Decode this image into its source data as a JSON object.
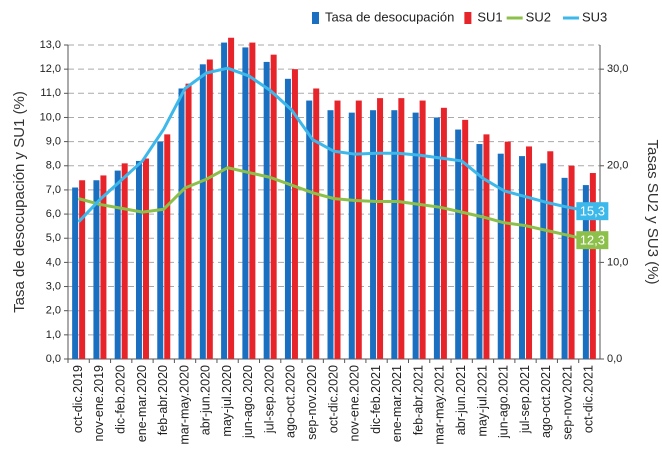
{
  "chart_data": {
    "type": "bar-line",
    "y_label": "Tasa de desocupación y SU1 (%)",
    "y2_label": "Tasas SU2 y SU3 (%)",
    "categories": [
      "oct-dic.2019",
      "nov-ene.2019",
      "dic-feb.2020",
      "ene-mar.2020",
      "feb-abr.2020",
      "mar-may.2020",
      "abr-jun.2020",
      "may-jul.2020",
      "jun-ago.2020",
      "jul-sep.2020",
      "ago-oct.2020",
      "sep-nov.2020",
      "oct-dic.2020",
      "nov-ene.2020",
      "dic-feb.2021",
      "ene-mar.2021",
      "feb-abr.2021",
      "mar-may.2021",
      "abr-jun.2021",
      "may-jul.2021",
      "jun-ago.2021",
      "jul-sep.2021",
      "ago-oct.2021",
      "sep-nov.2021",
      "oct-dic.2021"
    ],
    "series": [
      {
        "name": "Tasa de desocupación",
        "kind": "bar",
        "color": "#1a6fc0",
        "values": [
          7.1,
          7.4,
          7.8,
          8.2,
          9.0,
          11.2,
          12.2,
          13.1,
          12.9,
          12.3,
          11.6,
          10.7,
          10.3,
          10.2,
          10.3,
          10.3,
          10.2,
          10.0,
          9.5,
          8.9,
          8.5,
          8.4,
          8.1,
          7.5,
          7.2
        ]
      },
      {
        "name": "SU1",
        "kind": "bar",
        "color": "#e8242b",
        "values": [
          7.4,
          7.6,
          8.1,
          8.3,
          9.3,
          11.4,
          12.4,
          13.3,
          13.1,
          12.6,
          12.0,
          11.2,
          10.7,
          10.7,
          10.8,
          10.8,
          10.7,
          10.4,
          9.9,
          9.3,
          9.0,
          8.8,
          8.6,
          8.0,
          7.7
        ]
      },
      {
        "name": "SU2",
        "kind": "line",
        "axis": "y2",
        "color": "#8dc04b",
        "values": [
          16.6,
          16.0,
          15.6,
          15.2,
          15.5,
          17.7,
          18.6,
          19.8,
          19.3,
          18.8,
          18.0,
          17.2,
          16.6,
          16.4,
          16.3,
          16.3,
          16.0,
          15.7,
          15.2,
          14.7,
          14.1,
          13.8,
          13.3,
          12.8,
          12.3
        ],
        "value_labels": [
          null,
          null,
          null,
          null,
          null,
          null,
          null,
          null,
          null,
          null,
          null,
          null,
          null,
          null,
          null,
          null,
          null,
          null,
          null,
          null,
          null,
          null,
          null,
          null,
          "12,3"
        ]
      },
      {
        "name": "SU3",
        "kind": "line",
        "axis": "y2",
        "color": "#3db8ea",
        "values": [
          14.2,
          16.5,
          18.5,
          20.5,
          23.8,
          28.0,
          29.6,
          30.1,
          29.3,
          27.8,
          25.8,
          22.7,
          21.5,
          21.2,
          21.3,
          21.3,
          21.1,
          20.8,
          20.5,
          18.7,
          17.4,
          16.8,
          16.2,
          15.7,
          15.3
        ],
        "value_labels": [
          null,
          null,
          null,
          null,
          null,
          null,
          null,
          null,
          null,
          null,
          null,
          null,
          null,
          null,
          null,
          null,
          null,
          null,
          null,
          null,
          null,
          null,
          null,
          null,
          "15,3"
        ]
      }
    ],
    "ylim": [
      0,
      13
    ],
    "yticks": [
      {
        "value": 0,
        "label": "0,0"
      },
      {
        "value": 1,
        "label": "1,0"
      },
      {
        "value": 2,
        "label": "2,0"
      },
      {
        "value": 3,
        "label": "3,0"
      },
      {
        "value": 4,
        "label": "4,0"
      },
      {
        "value": 5,
        "label": "5,0"
      },
      {
        "value": 6,
        "label": "6,0"
      },
      {
        "value": 7,
        "label": "7,0"
      },
      {
        "value": 8,
        "label": "8,0"
      },
      {
        "value": 9,
        "label": "9,0"
      },
      {
        "value": 10,
        "label": "10,0"
      },
      {
        "value": 11,
        "label": "11,0"
      },
      {
        "value": 12,
        "label": "12,0"
      },
      {
        "value": 13,
        "label": "13,0"
      }
    ],
    "y2lim": [
      0,
      32.5
    ],
    "y2ticks": [
      {
        "value": 0,
        "label": "0,0"
      },
      {
        "value": 10,
        "label": "10,0"
      },
      {
        "value": 20,
        "label": "20,0"
      },
      {
        "value": 30,
        "label": "30,0"
      }
    ],
    "grid": true,
    "legend": "top-right"
  }
}
